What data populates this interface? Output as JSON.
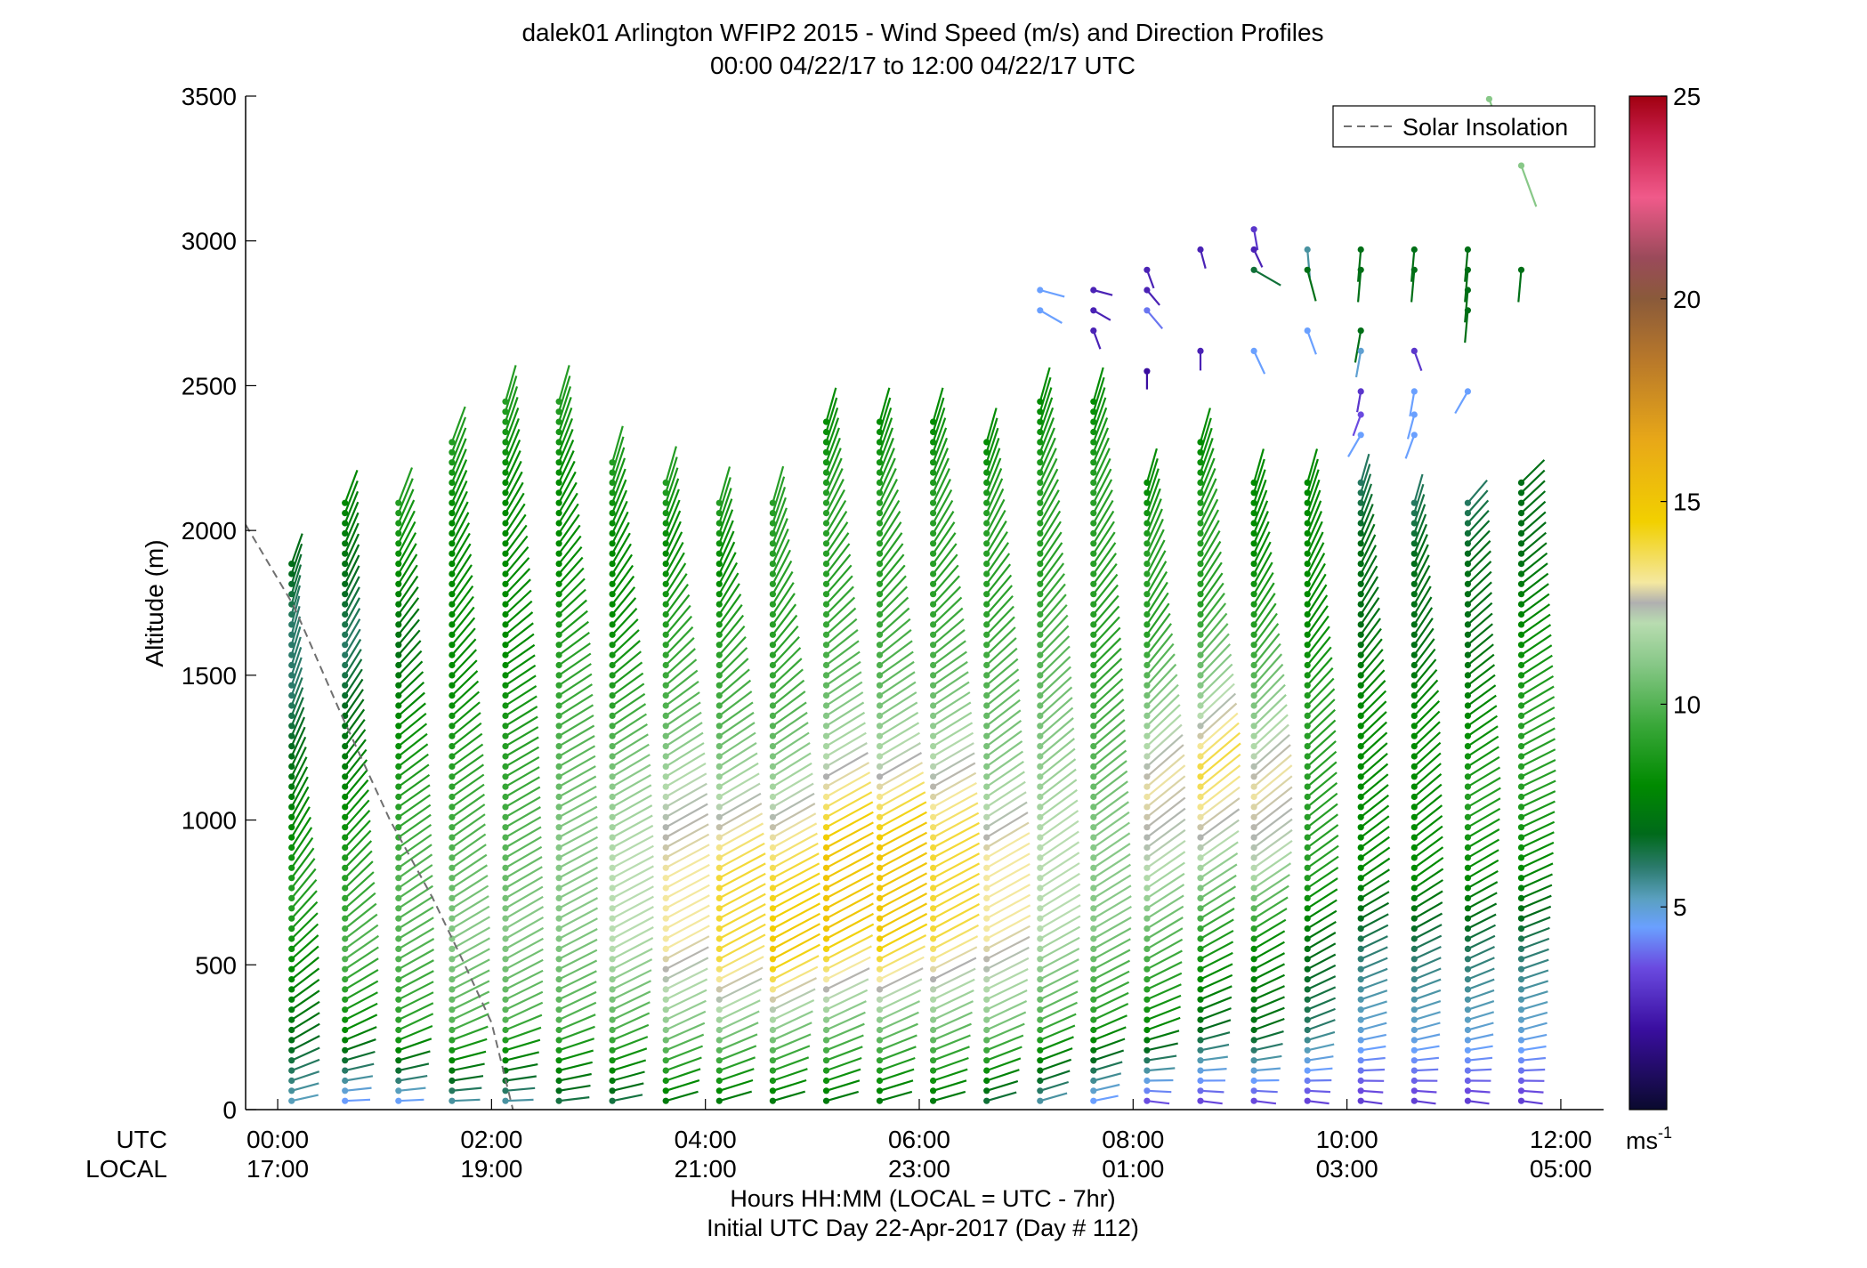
{
  "chart_data": {
    "type": "wind-barb-profile",
    "title": "dalek01 Arlington WFIP2 2015 - Wind Speed (m/s) and Direction Profiles",
    "subtitle": "00:00 04/22/17 to 12:00 04/22/17  UTC",
    "ylabel": "Altitude (m)",
    "xlabel": "Hours HH:MM  (LOCAL = UTC - 7hr)",
    "xlabel2": "Initial UTC Day 22-Apr-2017 (Day # 112)",
    "row_label_utc": "UTC",
    "row_label_local": "LOCAL",
    "xlim_hours": [
      -0.3,
      12.4
    ],
    "ylim": [
      0,
      3500
    ],
    "y_ticks": [
      0,
      500,
      1000,
      1500,
      2000,
      2500,
      3000,
      3500
    ],
    "x_ticks_utc": [
      "00:00",
      "02:00",
      "04:00",
      "06:00",
      "08:00",
      "10:00",
      "12:00"
    ],
    "x_ticks_local": [
      "17:00",
      "19:00",
      "21:00",
      "23:00",
      "01:00",
      "03:00",
      "05:00"
    ],
    "x_tick_hours": [
      0,
      2,
      4,
      6,
      8,
      10,
      12
    ],
    "legend": {
      "label": "Solar Insolation",
      "placement": "top-right"
    },
    "solar_insolation": {
      "x_hours": [
        -0.3,
        0.15,
        0.6,
        1.05,
        1.45,
        1.75,
        2.0,
        2.2
      ],
      "y_alt": [
        2020,
        1740,
        1360,
        1000,
        730,
        500,
        300,
        0
      ]
    },
    "colorbar": {
      "unit": "ms",
      "unit_exponent": "-1",
      "range": [
        0,
        25
      ],
      "ticks": [
        5,
        10,
        15,
        20,
        25
      ],
      "stops": [
        {
          "v": 0,
          "c": "#0a0a2e"
        },
        {
          "v": 2,
          "c": "#3a0ea0"
        },
        {
          "v": 3.5,
          "c": "#6a4ae0"
        },
        {
          "v": 4.5,
          "c": "#6aa0ff"
        },
        {
          "v": 5.2,
          "c": "#5aa0c0"
        },
        {
          "v": 6,
          "c": "#2a7a6a"
        },
        {
          "v": 6.8,
          "c": "#006a1a"
        },
        {
          "v": 8,
          "c": "#008a00"
        },
        {
          "v": 9.5,
          "c": "#3aa83a"
        },
        {
          "v": 11,
          "c": "#88c888"
        },
        {
          "v": 12,
          "c": "#b8dcb0"
        },
        {
          "v": 12.5,
          "c": "#b0b0b0"
        },
        {
          "v": 13,
          "c": "#f4e8a0"
        },
        {
          "v": 14.5,
          "c": "#f2d000"
        },
        {
          "v": 16.5,
          "c": "#e8a818"
        },
        {
          "v": 18.5,
          "c": "#b8782a"
        },
        {
          "v": 20,
          "c": "#8a5a3a"
        },
        {
          "v": 21,
          "c": "#9a4a5a"
        },
        {
          "v": 22.5,
          "c": "#f05a8a"
        },
        {
          "v": 24,
          "c": "#c81e4a"
        },
        {
          "v": 25,
          "c": "#a00010"
        }
      ]
    },
    "profiles": [
      {
        "t": 0.13,
        "top": 1910,
        "spd": [
          5,
          7,
          8,
          9,
          8,
          7,
          6,
          6,
          7
        ],
        "dir": [
          280,
          300,
          310,
          320,
          330,
          335,
          340,
          345,
          340
        ]
      },
      {
        "t": 0.63,
        "top": 2120,
        "spd": [
          4,
          8,
          10,
          9,
          8,
          7,
          6,
          7,
          8
        ],
        "dir": [
          270,
          295,
          305,
          315,
          320,
          325,
          330,
          335,
          340
        ]
      },
      {
        "t": 1.13,
        "top": 2120,
        "spd": [
          4,
          9,
          10,
          10,
          9,
          8,
          7,
          8,
          9
        ],
        "dir": [
          270,
          295,
          300,
          305,
          305,
          310,
          320,
          330,
          340
        ]
      },
      {
        "t": 1.63,
        "top": 2330,
        "spd": [
          5,
          10,
          11,
          10,
          9,
          8,
          8,
          8,
          9
        ],
        "dir": [
          270,
          295,
          300,
          305,
          305,
          315,
          325,
          335,
          340
        ]
      },
      {
        "t": 2.13,
        "top": 2470,
        "spd": [
          5,
          10,
          11,
          10,
          9,
          8,
          8,
          8,
          9
        ],
        "dir": [
          270,
          295,
          300,
          300,
          300,
          305,
          320,
          335,
          345
        ]
      },
      {
        "t": 2.63,
        "top": 2470,
        "spd": [
          6,
          10,
          11,
          11,
          10,
          9,
          8,
          8,
          9
        ],
        "dir": [
          275,
          295,
          298,
          298,
          300,
          305,
          320,
          335,
          345
        ]
      },
      {
        "t": 3.13,
        "top": 2260,
        "spd": [
          6,
          10,
          12,
          12,
          11,
          9,
          8,
          8,
          9
        ],
        "dir": [
          280,
          295,
          298,
          298,
          300,
          305,
          320,
          335,
          345
        ]
      },
      {
        "t": 3.63,
        "top": 2190,
        "spd": [
          7,
          11,
          13,
          13,
          12,
          10,
          9,
          8,
          9
        ],
        "dir": [
          285,
          295,
          298,
          298,
          300,
          305,
          320,
          335,
          345
        ]
      },
      {
        "t": 4.13,
        "top": 2120,
        "spd": [
          7,
          11,
          14,
          14,
          12,
          10,
          9,
          8,
          9
        ],
        "dir": [
          285,
          295,
          298,
          298,
          300,
          305,
          320,
          335,
          345
        ]
      },
      {
        "t": 4.63,
        "top": 2120,
        "spd": [
          7,
          11,
          15,
          14,
          12,
          10,
          9,
          9,
          9
        ],
        "dir": [
          285,
          295,
          298,
          298,
          300,
          305,
          320,
          335,
          345
        ]
      },
      {
        "t": 5.13,
        "top": 2400,
        "spd": [
          7,
          11,
          15,
          15,
          12,
          10,
          9,
          9,
          8
        ],
        "dir": [
          285,
          295,
          298,
          298,
          300,
          305,
          320,
          335,
          345
        ]
      },
      {
        "t": 5.63,
        "top": 2400,
        "spd": [
          7,
          11,
          15,
          15,
          12,
          10,
          9,
          9,
          8
        ],
        "dir": [
          285,
          295,
          298,
          298,
          300,
          305,
          320,
          335,
          345
        ]
      },
      {
        "t": 6.13,
        "top": 2400,
        "spd": [
          7,
          11,
          14,
          14,
          12,
          10,
          9,
          9,
          8
        ],
        "dir": [
          285,
          295,
          298,
          298,
          300,
          305,
          320,
          335,
          345
        ]
      },
      {
        "t": 6.63,
        "top": 2330,
        "spd": [
          6,
          11,
          13,
          13,
          11,
          10,
          9,
          9,
          8
        ],
        "dir": [
          285,
          295,
          298,
          300,
          305,
          310,
          320,
          335,
          345
        ]
      },
      {
        "t": 7.13,
        "top": 2470,
        "spd": [
          5,
          10,
          12,
          12,
          11,
          10,
          9,
          9,
          8
        ],
        "dir": [
          285,
          295,
          300,
          305,
          310,
          315,
          325,
          335,
          345
        ]
      },
      {
        "t": 7.63,
        "top": 2470,
        "spd": [
          4,
          9,
          11,
          11,
          10,
          9,
          9,
          9,
          8
        ],
        "dir": [
          280,
          295,
          300,
          305,
          310,
          315,
          325,
          335,
          345
        ]
      },
      {
        "t": 8.13,
        "top": 2190,
        "spd": [
          3,
          8,
          10,
          12,
          13,
          11,
          9,
          9,
          8
        ],
        "dir": [
          260,
          290,
          300,
          305,
          310,
          315,
          325,
          335,
          345
        ]
      },
      {
        "t": 8.63,
        "top": 2330,
        "spd": [
          3,
          7,
          9,
          12,
          14,
          11,
          9,
          9,
          8
        ],
        "dir": [
          260,
          290,
          300,
          305,
          310,
          315,
          325,
          335,
          345
        ]
      },
      {
        "t": 9.13,
        "top": 2190,
        "spd": [
          3,
          7,
          8,
          12,
          13,
          11,
          9,
          8,
          8
        ],
        "dir": [
          260,
          290,
          300,
          305,
          310,
          315,
          325,
          335,
          345
        ]
      },
      {
        "t": 9.63,
        "top": 2190,
        "spd": [
          3,
          6,
          7,
          9,
          9,
          9,
          8,
          8,
          8
        ],
        "dir": [
          260,
          290,
          300,
          305,
          310,
          315,
          325,
          335,
          345
        ]
      },
      {
        "t": 10.13,
        "top": 2190,
        "spd": [
          3,
          5,
          6,
          8,
          8,
          8,
          7,
          7,
          6
        ],
        "dir": [
          260,
          285,
          295,
          305,
          310,
          315,
          325,
          335,
          345
        ]
      },
      {
        "t": 10.63,
        "top": 2120,
        "spd": [
          3,
          5,
          6,
          8,
          8,
          8,
          7,
          7,
          6
        ],
        "dir": [
          260,
          285,
          295,
          305,
          310,
          315,
          325,
          335,
          345
        ]
      },
      {
        "t": 11.13,
        "top": 2120,
        "spd": [
          3,
          5,
          6,
          8,
          9,
          8,
          7,
          7,
          6
        ],
        "dir": [
          260,
          285,
          295,
          300,
          300,
          305,
          310,
          315,
          320
        ]
      },
      {
        "t": 11.63,
        "top": 2190,
        "spd": [
          3,
          5,
          6,
          8,
          9,
          9,
          8,
          7,
          7
        ],
        "dir": [
          260,
          285,
          290,
          295,
          295,
          300,
          305,
          310,
          315
        ]
      }
    ],
    "upper_layer": [
      {
        "t": 7.13,
        "alt": 2830,
        "spd": 4.5,
        "dir": 255
      },
      {
        "t": 7.13,
        "alt": 2760,
        "spd": 4.5,
        "dir": 240
      },
      {
        "t": 7.63,
        "alt": 2830,
        "spd": 2.5,
        "dir": 255
      },
      {
        "t": 7.63,
        "alt": 2760,
        "spd": 2.5,
        "dir": 240
      },
      {
        "t": 7.63,
        "alt": 2690,
        "spd": 2.5,
        "dir": 200
      },
      {
        "t": 8.13,
        "alt": 2900,
        "spd": 2.5,
        "dir": 200
      },
      {
        "t": 8.13,
        "alt": 2830,
        "spd": 2.5,
        "dir": 220
      },
      {
        "t": 8.13,
        "alt": 2760,
        "spd": 4,
        "dir": 220
      },
      {
        "t": 8.13,
        "alt": 2550,
        "spd": 2,
        "dir": 180
      },
      {
        "t": 8.63,
        "alt": 2970,
        "spd": 2.5,
        "dir": 195
      },
      {
        "t": 8.63,
        "alt": 2620,
        "spd": 2.5,
        "dir": 180
      },
      {
        "t": 9.13,
        "alt": 3040,
        "spd": 3,
        "dir": 190
      },
      {
        "t": 9.13,
        "alt": 2970,
        "spd": 2.5,
        "dir": 205
      },
      {
        "t": 9.13,
        "alt": 2900,
        "spd": 6.5,
        "dir": 240
      },
      {
        "t": 9.13,
        "alt": 2620,
        "spd": 4.5,
        "dir": 205
      },
      {
        "t": 9.63,
        "alt": 2970,
        "spd": 5.5,
        "dir": 185
      },
      {
        "t": 9.63,
        "alt": 2900,
        "spd": 7,
        "dir": 195
      },
      {
        "t": 9.63,
        "alt": 2690,
        "spd": 4.5,
        "dir": 200
      },
      {
        "t": 10.13,
        "alt": 2970,
        "spd": 7,
        "dir": 175
      },
      {
        "t": 10.13,
        "alt": 2900,
        "spd": 7,
        "dir": 175
      },
      {
        "t": 10.13,
        "alt": 2690,
        "spd": 7,
        "dir": 170
      },
      {
        "t": 10.13,
        "alt": 2620,
        "spd": 5,
        "dir": 170
      },
      {
        "t": 10.13,
        "alt": 2480,
        "spd": 3,
        "dir": 170
      },
      {
        "t": 10.13,
        "alt": 2400,
        "spd": 3.5,
        "dir": 160
      },
      {
        "t": 10.13,
        "alt": 2330,
        "spd": 4.5,
        "dir": 150
      },
      {
        "t": 10.63,
        "alt": 2970,
        "spd": 7,
        "dir": 175
      },
      {
        "t": 10.63,
        "alt": 2900,
        "spd": 7,
        "dir": 175
      },
      {
        "t": 10.63,
        "alt": 2620,
        "spd": 3,
        "dir": 200
      },
      {
        "t": 10.63,
        "alt": 2480,
        "spd": 4.5,
        "dir": 170
      },
      {
        "t": 10.63,
        "alt": 2400,
        "spd": 4.5,
        "dir": 165
      },
      {
        "t": 10.63,
        "alt": 2330,
        "spd": 4.5,
        "dir": 160
      },
      {
        "t": 11.13,
        "alt": 2970,
        "spd": 7,
        "dir": 175
      },
      {
        "t": 11.13,
        "alt": 2900,
        "spd": 7,
        "dir": 175
      },
      {
        "t": 11.13,
        "alt": 2830,
        "spd": 7,
        "dir": 175
      },
      {
        "t": 11.13,
        "alt": 2760,
        "spd": 7,
        "dir": 175
      },
      {
        "t": 11.13,
        "alt": 2480,
        "spd": 4.5,
        "dir": 150
      },
      {
        "t": 11.63,
        "alt": 2900,
        "spd": 7,
        "dir": 175
      },
      {
        "t": 11.63,
        "alt": 3260,
        "spd": 11,
        "dir": 200
      },
      {
        "t": 11.33,
        "alt": 3490,
        "spd": 11,
        "dir": 200
      }
    ]
  }
}
